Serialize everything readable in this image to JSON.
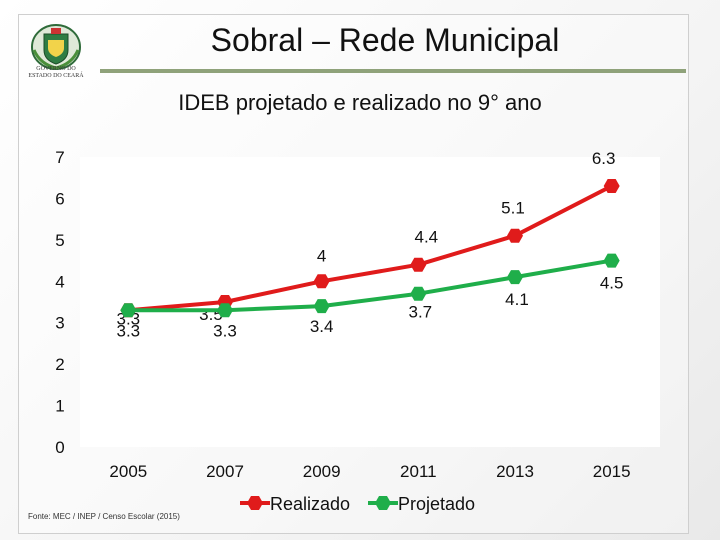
{
  "header": {
    "title": "Sobral – Rede Municipal",
    "logo_caption_line1": "GOVERNO DO",
    "logo_caption_line2": "ESTADO DO CEARÁ"
  },
  "subtitle": "IDEB projetado e realizado no 9° ano",
  "footer": {
    "source": "Fonte: MEC / INEP / Censo Escolar (2015)"
  },
  "colors": {
    "realizado": "#e01b1b",
    "projetado": "#1fae4a",
    "accent_rule": "#8fa27a"
  },
  "chart_data": {
    "type": "line",
    "title": "IDEB projetado e realizado no 9° ano",
    "xlabel": "",
    "ylabel": "",
    "categories": [
      "2005",
      "2007",
      "2009",
      "2011",
      "2013",
      "2015"
    ],
    "y_ticks": [
      "0",
      "1",
      "2",
      "3",
      "4",
      "5",
      "6",
      "7"
    ],
    "ylim": [
      0,
      7
    ],
    "grid": false,
    "legend_position": "bottom",
    "series": [
      {
        "name": "Realizado",
        "color": "#e01b1b",
        "values": [
          3.3,
          3.5,
          4.0,
          4.4,
          5.1,
          6.3
        ],
        "labels": [
          "3.3",
          "3.5",
          "4",
          "4.4",
          "5.1",
          "6.3"
        ]
      },
      {
        "name": "Projetado",
        "color": "#1fae4a",
        "values": [
          3.3,
          3.3,
          3.4,
          3.7,
          4.1,
          4.5
        ],
        "labels": [
          "3.3",
          "3.3",
          "3.4",
          "3.7",
          "4.1",
          "4.5"
        ]
      }
    ]
  }
}
